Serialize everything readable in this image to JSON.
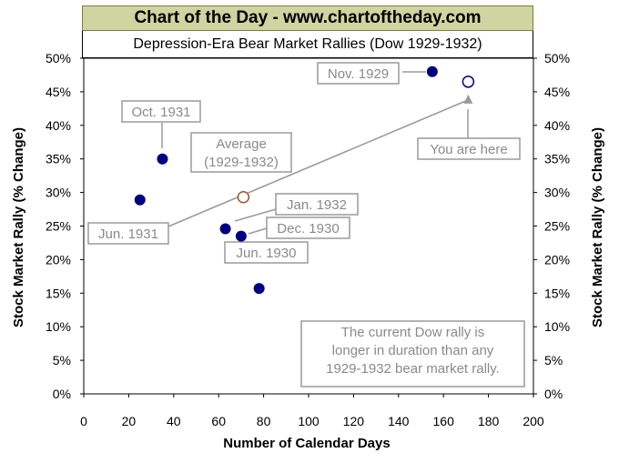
{
  "header": {
    "banner": "Chart of the Day - www.chartoftheday.com",
    "title": "Depression-Era Bear Market Rallies (Dow 1929-1932)"
  },
  "chart_data": {
    "type": "scatter",
    "title": "Depression-Era Bear Market Rallies (Dow 1929-1932)",
    "xlabel": "Number of Calendar Days",
    "ylabel": "Stock Market Rally (% Change)",
    "xlim": [
      0,
      200
    ],
    "ylim": [
      0,
      50
    ],
    "x_ticks": [
      "0",
      "20",
      "40",
      "60",
      "80",
      "100",
      "120",
      "140",
      "160",
      "180",
      "200"
    ],
    "y_ticks": [
      "0%",
      "5%",
      "10%",
      "15%",
      "20%",
      "25%",
      "30%",
      "35%",
      "40%",
      "45%",
      "50%"
    ],
    "grid": false,
    "series": [
      {
        "points": [
          {
            "label": "Jun. 1931",
            "x": 25,
            "y": 28.9
          },
          {
            "label": "Oct. 1931",
            "x": 35,
            "y": 35.0
          },
          {
            "label": "Jan. 1932",
            "x": 63,
            "y": 24.6
          },
          {
            "label": "Dec. 1930",
            "x": 70,
            "y": 23.5
          },
          {
            "label": "Jun. 1930",
            "x": 78,
            "y": 15.7
          },
          {
            "label": "Nov. 1929",
            "x": 155,
            "y": 48.0
          }
        ]
      }
    ],
    "average_point": {
      "label": "Average (1929-1932)",
      "label_lines": [
        "Average",
        "(1929-1932)"
      ],
      "x": 71,
      "y": 29.3
    },
    "current_point": {
      "label": "You are here",
      "x": 171,
      "y": 46.5
    },
    "note_lines": [
      "The current Dow rally is",
      "longer in duration than any",
      "1929-1932 bear market rally."
    ],
    "colors": {
      "point_fill": "#000080",
      "average_stroke": "#a0522d",
      "current_stroke": "#000080",
      "annotation": "#9a9a9a",
      "banner_bg": "#d0d4a0"
    }
  }
}
